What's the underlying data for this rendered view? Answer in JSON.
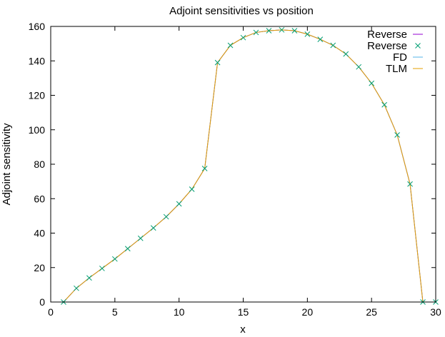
{
  "chart_data": {
    "type": "line",
    "title": "Adjoint sensitivities vs position",
    "xlabel": "x",
    "ylabel": "Adjoint sensitivity",
    "xlim": [
      0,
      30
    ],
    "ylim": [
      0,
      160
    ],
    "xticks": [
      0,
      5,
      10,
      15,
      20,
      25,
      30
    ],
    "yticks": [
      0,
      20,
      40,
      60,
      80,
      100,
      120,
      140,
      160
    ],
    "grid": false,
    "legend_position": "top-right",
    "x": [
      1,
      2,
      3,
      4,
      5,
      6,
      7,
      8,
      9,
      10,
      11,
      12,
      13,
      14,
      15,
      16,
      17,
      18,
      19,
      20,
      21,
      22,
      23,
      24,
      25,
      26,
      27,
      28,
      29,
      30
    ],
    "series": [
      {
        "name": "Reverse",
        "style": "line",
        "color": "#9400d3",
        "values": [
          0,
          8,
          14,
          19.5,
          25,
          31,
          37,
          43,
          49.5,
          57,
          65.5,
          77.5,
          139,
          149,
          153.5,
          156.5,
          157.5,
          158,
          157.5,
          155.5,
          152.5,
          149,
          144,
          136.5,
          127,
          114.5,
          97,
          68.5,
          0,
          0
        ]
      },
      {
        "name": "Reverse",
        "style": "points",
        "marker": "x",
        "color": "#009e73",
        "values": [
          0,
          8,
          14,
          19.5,
          25,
          31,
          37,
          43,
          49.5,
          57,
          65.5,
          77.5,
          139,
          149,
          153.5,
          156.5,
          157.5,
          158,
          157.5,
          155.5,
          152.5,
          149,
          144,
          136.5,
          127,
          114.5,
          97,
          68.5,
          0,
          0
        ]
      },
      {
        "name": "FD",
        "style": "line",
        "color": "#56b4e9",
        "values": [
          0,
          8,
          14,
          19.5,
          25,
          31,
          37,
          43,
          49.5,
          57,
          65.5,
          77.5,
          139,
          149,
          153.5,
          156.5,
          157.5,
          158,
          157.5,
          155.5,
          152.5,
          149,
          144,
          136.5,
          127,
          114.5,
          97,
          68.5,
          0,
          0
        ]
      },
      {
        "name": "TLM",
        "style": "line",
        "color": "#e69f00",
        "values": [
          0,
          8,
          14,
          19.5,
          25,
          31,
          37,
          43,
          49.5,
          57,
          65.5,
          77.5,
          139,
          149,
          153.5,
          156.5,
          157.5,
          158,
          157.5,
          155.5,
          152.5,
          149,
          144,
          136.5,
          127,
          114.5,
          97,
          68.5,
          0,
          0
        ]
      }
    ]
  }
}
